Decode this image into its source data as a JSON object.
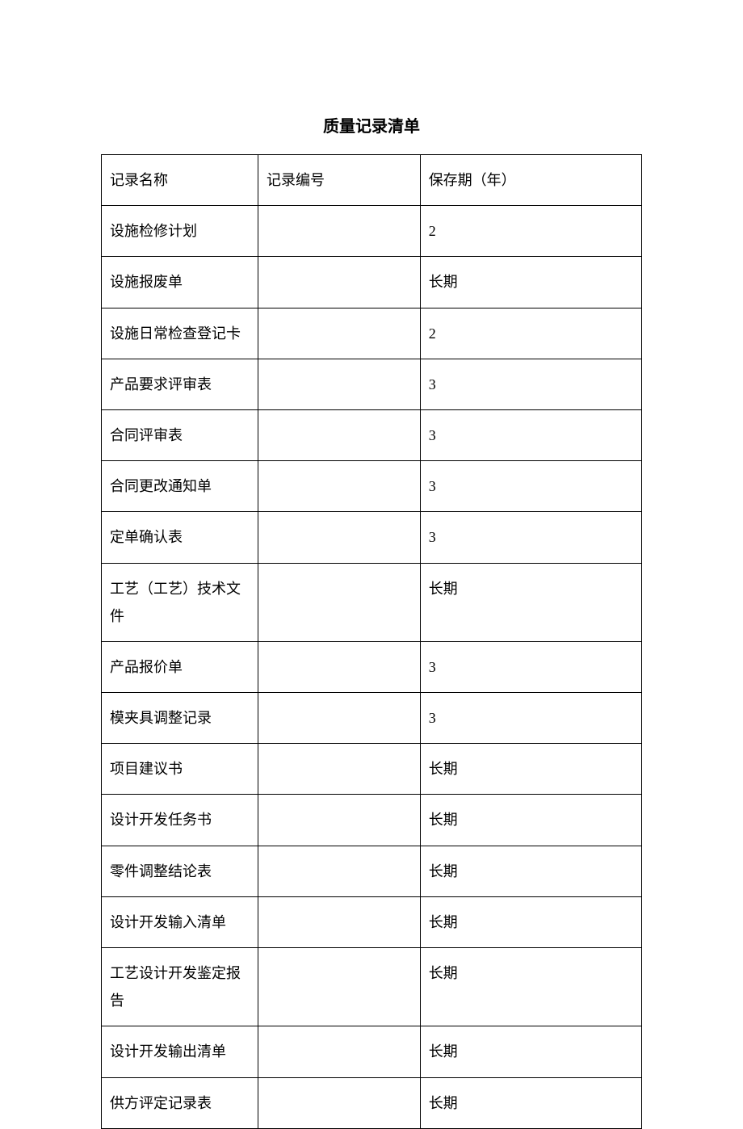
{
  "title": "质量记录清单",
  "table": {
    "headers": {
      "col1": "记录名称",
      "col2": "记录编号",
      "col3": "保存期（年）"
    },
    "rows": [
      {
        "name": "设施检修计划",
        "code": "",
        "period": "2"
      },
      {
        "name": "设施报废单",
        "code": "",
        "period": "长期"
      },
      {
        "name": "设施日常检查登记卡",
        "code": "",
        "period": "2"
      },
      {
        "name": "产品要求评审表",
        "code": "",
        "period": "3"
      },
      {
        "name": "合同评审表",
        "code": "",
        "period": "3"
      },
      {
        "name": "合同更改通知单",
        "code": "",
        "period": "3"
      },
      {
        "name": "定单确认表",
        "code": "",
        "period": "3"
      },
      {
        "name": "工艺（工艺）技术文件",
        "code": "",
        "period": "长期"
      },
      {
        "name": "产品报价单",
        "code": "",
        "period": "3"
      },
      {
        "name": "模夹具调整记录",
        "code": "",
        "period": "3"
      },
      {
        "name": "项目建议书",
        "code": "",
        "period": "长期"
      },
      {
        "name": "设计开发任务书",
        "code": "",
        "period": "长期"
      },
      {
        "name": "零件调整结论表",
        "code": "",
        "period": "长期"
      },
      {
        "name": "设计开发输入清单",
        "code": "",
        "period": "长期"
      },
      {
        "name": "工艺设计开发鉴定报告",
        "code": "",
        "period": "长期"
      },
      {
        "name": "设计开发输出清单",
        "code": "",
        "period": "长期"
      },
      {
        "name": "供方评定记录表",
        "code": "",
        "period": "长期"
      }
    ]
  },
  "styling": {
    "background_color": "#ffffff",
    "border_color": "#000000",
    "text_color": "#000000",
    "title_fontsize": 20,
    "cell_fontsize": 18,
    "col_widths_pct": [
      29,
      30,
      41
    ]
  }
}
